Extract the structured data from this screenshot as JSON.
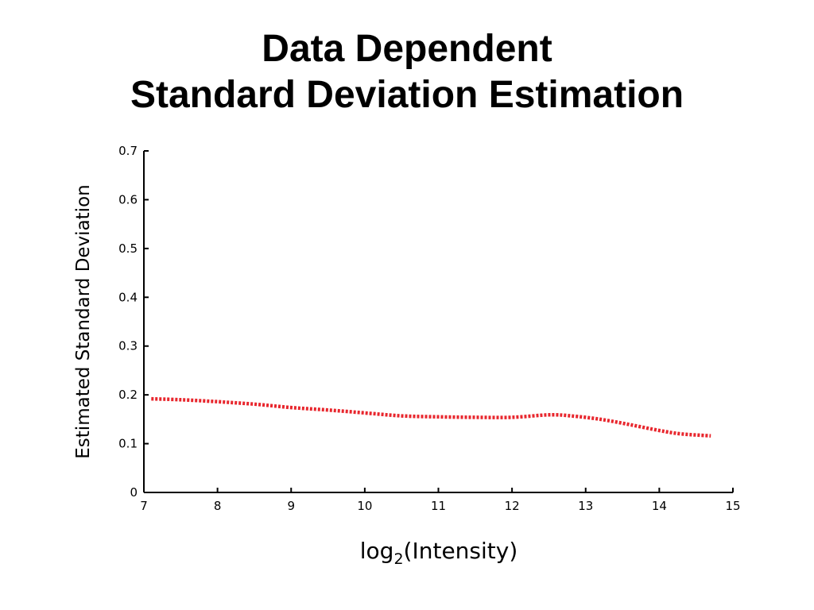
{
  "slide": {
    "title_line1": "Data Dependent",
    "title_line2": "Standard Deviation Estimation"
  },
  "chart_data": {
    "type": "line",
    "title": "Data Dependent Standard Deviation Estimation",
    "xlabel_base": "log",
    "xlabel_subscript": "2",
    "xlabel_rest": "(Intensity)",
    "ylabel": "Estimated Standard Deviation",
    "xlim": [
      7,
      15
    ],
    "ylim": [
      0,
      0.7
    ],
    "x_ticks": [
      7,
      8,
      9,
      10,
      11,
      12,
      13,
      14,
      15
    ],
    "y_ticks": [
      0,
      0.1,
      0.2,
      0.3,
      0.4,
      0.5,
      0.6,
      0.7
    ],
    "grid": false,
    "line_color": "#e8262d",
    "line_style": "dotted",
    "series": [
      {
        "x": [
          7.1,
          7.5,
          8.0,
          8.5,
          9.0,
          9.5,
          10.0,
          10.5,
          11.0,
          11.5,
          12.0,
          12.5,
          12.8,
          13.2,
          13.6,
          14.0,
          14.3,
          14.7
        ],
        "values": [
          0.192,
          0.19,
          0.186,
          0.181,
          0.174,
          0.169,
          0.163,
          0.157,
          0.155,
          0.154,
          0.154,
          0.159,
          0.157,
          0.15,
          0.139,
          0.127,
          0.12,
          0.116
        ]
      }
    ]
  }
}
